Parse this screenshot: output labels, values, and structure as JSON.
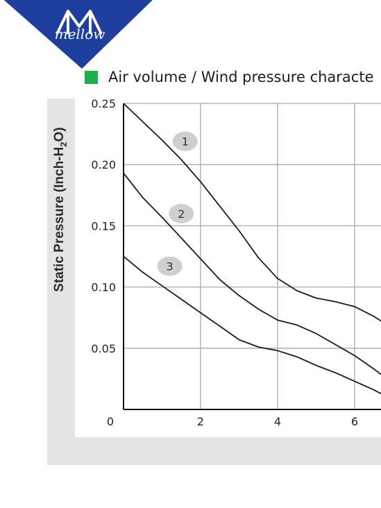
{
  "brand": {
    "name": "mellow",
    "badge_color": "#1f3f9f"
  },
  "header": {
    "title": "Air volume / Wind pressure characte",
    "marker_color": "#1fae4a"
  },
  "chart_data": {
    "type": "line",
    "title": "Air volume / Wind pressure characte",
    "ylabel": "Static Pressure (Inch-H",
    "ylabel_sub": "2",
    "ylabel_end": "O)",
    "xlabel": "",
    "xlim": [
      0,
      7
    ],
    "ylim": [
      0,
      0.25
    ],
    "x_ticks": [
      {
        "v": 0,
        "label": "0"
      },
      {
        "v": 2,
        "label": "2"
      },
      {
        "v": 4,
        "label": "4"
      },
      {
        "v": 6,
        "label": "6"
      }
    ],
    "y_ticks": [
      {
        "v": 0.05,
        "label": "0.05"
      },
      {
        "v": 0.1,
        "label": "0.10"
      },
      {
        "v": 0.15,
        "label": "0.15"
      },
      {
        "v": 0.2,
        "label": "0.20"
      },
      {
        "v": 0.25,
        "label": "0.25"
      }
    ],
    "grid": true,
    "line_color": "#1a1a1a",
    "series": [
      {
        "name": "1",
        "label_at": [
          1.6,
          0.219
        ],
        "points": [
          [
            0,
            0.25
          ],
          [
            0.5,
            0.235
          ],
          [
            1,
            0.22
          ],
          [
            1.5,
            0.204
          ],
          [
            2,
            0.186
          ],
          [
            2.5,
            0.166
          ],
          [
            3,
            0.146
          ],
          [
            3.5,
            0.124
          ],
          [
            4,
            0.107
          ],
          [
            4.5,
            0.097
          ],
          [
            5,
            0.091
          ],
          [
            5.5,
            0.088
          ],
          [
            6,
            0.084
          ],
          [
            6.5,
            0.076
          ],
          [
            6.8,
            0.07
          ]
        ]
      },
      {
        "name": "2",
        "label_at": [
          1.5,
          0.16
        ],
        "points": [
          [
            0,
            0.193
          ],
          [
            0.5,
            0.173
          ],
          [
            1,
            0.157
          ],
          [
            1.5,
            0.14
          ],
          [
            2,
            0.123
          ],
          [
            2.5,
            0.106
          ],
          [
            3,
            0.093
          ],
          [
            3.5,
            0.082
          ],
          [
            4,
            0.073
          ],
          [
            4.5,
            0.069
          ],
          [
            5,
            0.062
          ],
          [
            5.5,
            0.053
          ],
          [
            6,
            0.044
          ],
          [
            6.5,
            0.033
          ],
          [
            6.8,
            0.026
          ]
        ]
      },
      {
        "name": "3",
        "label_at": [
          1.2,
          0.117
        ],
        "points": [
          [
            0,
            0.125
          ],
          [
            0.5,
            0.112
          ],
          [
            1,
            0.101
          ],
          [
            1.5,
            0.09
          ],
          [
            2,
            0.079
          ],
          [
            2.5,
            0.068
          ],
          [
            3,
            0.057
          ],
          [
            3.5,
            0.051
          ],
          [
            4,
            0.048
          ],
          [
            4.5,
            0.043
          ],
          [
            5,
            0.036
          ],
          [
            5.5,
            0.03
          ],
          [
            6,
            0.023
          ],
          [
            6.5,
            0.016
          ],
          [
            6.8,
            0.011
          ]
        ]
      }
    ]
  }
}
